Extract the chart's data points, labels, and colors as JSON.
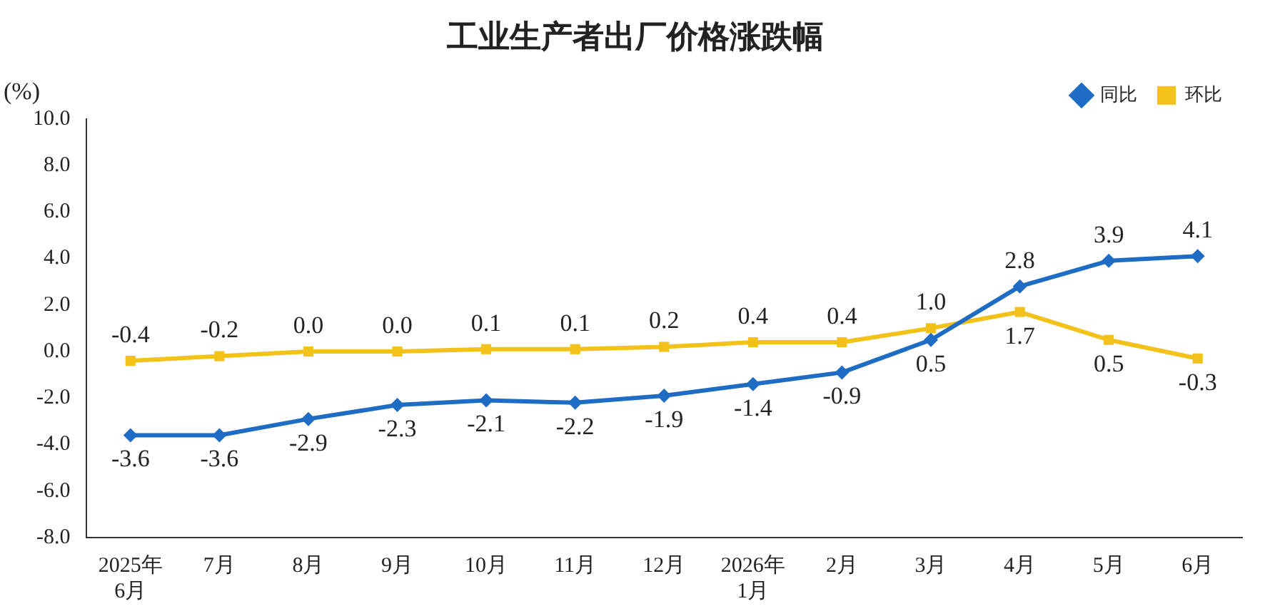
{
  "chart_data": {
    "type": "line",
    "title": "工业生产者出厂价格涨跌幅",
    "ylabel": "(%)",
    "categories": [
      "2025年\n6月",
      "7月",
      "8月",
      "9月",
      "10月",
      "11月",
      "12月",
      "2026年\n1月",
      "2月",
      "3月",
      "4月",
      "5月",
      "6月"
    ],
    "series": [
      {
        "name": "同比",
        "color": "#1f6cc4",
        "marker": "diamond",
        "values": [
          -3.6,
          -3.6,
          -2.9,
          -2.3,
          -2.1,
          -2.2,
          -1.9,
          -1.4,
          -0.9,
          0.5,
          2.8,
          3.9,
          4.1
        ],
        "value_labels": [
          "-3.6",
          "-3.6",
          "-2.9",
          "-2.3",
          "-2.1",
          "-2.2",
          "-1.9",
          "-1.4",
          "-0.9",
          "0.5",
          "2.8",
          "3.9",
          "4.1"
        ]
      },
      {
        "name": "环比",
        "color": "#f2c21b",
        "marker": "square",
        "values": [
          -0.4,
          -0.2,
          0.0,
          0.0,
          0.1,
          0.1,
          0.2,
          0.4,
          0.4,
          1.0,
          1.7,
          0.5,
          -0.3
        ],
        "value_labels": [
          "-0.4",
          "-0.2",
          "0.0",
          "0.0",
          "0.1",
          "0.1",
          "0.2",
          "0.4",
          "0.4",
          "1.0",
          "1.7",
          "0.5",
          "-0.3"
        ]
      }
    ],
    "ylim": [
      -8,
      10
    ],
    "yticks": [
      {
        "value": -8,
        "label": "-8.0"
      },
      {
        "value": -6,
        "label": "-6.0"
      },
      {
        "value": -4,
        "label": "-4.0"
      },
      {
        "value": -2,
        "label": "-2.0"
      },
      {
        "value": 0,
        "label": "0.0"
      },
      {
        "value": 2,
        "label": "2.0"
      },
      {
        "value": 4,
        "label": "4.0"
      },
      {
        "value": 6,
        "label": "6.0"
      },
      {
        "value": 8,
        "label": "8.0"
      },
      {
        "value": 10,
        "label": "10.0"
      }
    ],
    "grid": false,
    "legend": "top right",
    "line_style": "solid"
  }
}
